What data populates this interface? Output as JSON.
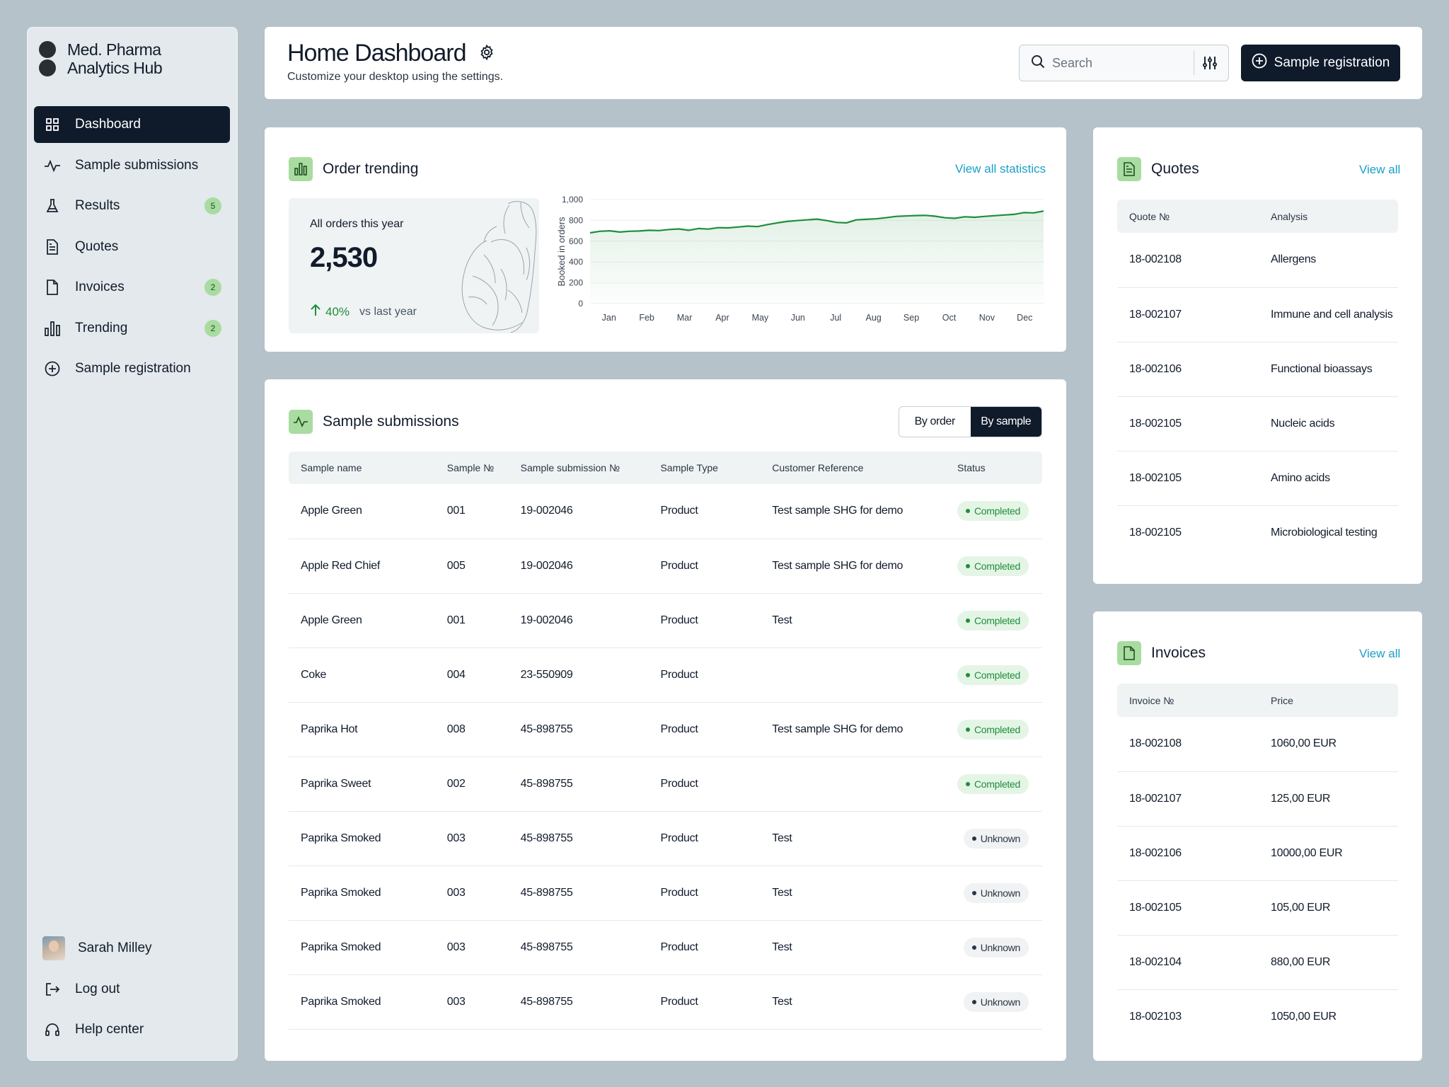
{
  "brand": {
    "line1": "Med. Pharma",
    "line2": "Analytics Hub"
  },
  "sidebar": {
    "items": [
      {
        "label": "Dashboard",
        "icon": "grid-icon",
        "badge": null,
        "active": true
      },
      {
        "label": "Sample submissions",
        "icon": "activity-icon",
        "badge": null
      },
      {
        "label": "Results",
        "icon": "flask-icon",
        "badge": "5"
      },
      {
        "label": "Quotes",
        "icon": "document-icon",
        "badge": null
      },
      {
        "label": "Invoices",
        "icon": "file-icon",
        "badge": "2"
      },
      {
        "label": "Trending",
        "icon": "bar-chart-icon",
        "badge": "2"
      },
      {
        "label": "Sample registration",
        "icon": "plus-circle-icon",
        "badge": null
      }
    ],
    "user_name": "Sarah Milley",
    "logout": "Log out",
    "help": "Help center"
  },
  "header": {
    "title": "Home Dashboard",
    "subtitle": "Customize your desktop using the settings.",
    "search_placeholder": "Search",
    "primary_button": "Sample registration"
  },
  "order_trending": {
    "title": "Order trending",
    "link": "View all statistics",
    "stat_label": "All orders this year",
    "stat_value": "2,530",
    "change": "40%",
    "change_suffix": "vs last year"
  },
  "chart_data": {
    "type": "area",
    "ylabel": "Booked in orders",
    "ylim": [
      0,
      1000
    ],
    "yticks": [
      "0",
      "200",
      "400",
      "600",
      "800",
      "1,000"
    ],
    "categories": [
      "Jan",
      "Feb",
      "Mar",
      "Apr",
      "May",
      "Jun",
      "Jul",
      "Aug",
      "Sep",
      "Oct",
      "Nov",
      "Dec"
    ],
    "x": [
      0,
      0.25,
      0.5,
      0.75,
      1,
      1.25,
      1.5,
      1.75,
      2,
      2.25,
      2.5,
      2.75,
      3,
      3.25,
      3.5,
      3.75,
      4,
      4.25,
      4.5,
      4.75,
      5,
      5.25,
      5.5,
      5.75,
      6,
      6.25,
      6.5,
      6.75,
      7,
      7.25,
      7.5,
      7.75,
      8,
      8.25,
      8.5,
      8.75,
      9,
      9.25,
      9.5,
      9.75,
      10,
      10.25,
      10.5,
      10.75,
      11,
      11.25,
      11.5
    ],
    "values": [
      680,
      695,
      700,
      688,
      695,
      698,
      705,
      702,
      712,
      718,
      705,
      722,
      716,
      730,
      728,
      736,
      745,
      740,
      760,
      776,
      790,
      798,
      805,
      812,
      798,
      780,
      776,
      805,
      810,
      815,
      825,
      838,
      842,
      846,
      848,
      840,
      825,
      820,
      835,
      830,
      838,
      845,
      852,
      858,
      875,
      872,
      890
    ]
  },
  "submissions": {
    "title": "Sample submissions",
    "segments": [
      "By order",
      "By sample"
    ],
    "columns": [
      "Sample name",
      "Sample №",
      "Sample submission №",
      "Sample Type",
      "Customer Reference",
      "Status"
    ],
    "rows": [
      [
        "Apple Green",
        "001",
        "19-002046",
        "Product",
        "Test sample SHG for demo",
        "Completed"
      ],
      [
        "Apple Red Chief",
        "005",
        "19-002046",
        "Product",
        "Test sample SHG for demo",
        "Completed"
      ],
      [
        "Apple Green",
        "001",
        "19-002046",
        "Product",
        "Test",
        "Completed"
      ],
      [
        "Coke",
        "004",
        "23-550909",
        "Product",
        "",
        "Completed"
      ],
      [
        "Paprika Hot",
        "008",
        "45-898755",
        "Product",
        "Test sample SHG for demo",
        "Completed"
      ],
      [
        "Paprika Sweet",
        "002",
        "45-898755",
        "Product",
        "",
        "Completed"
      ],
      [
        "Paprika Smoked",
        "003",
        "45-898755",
        "Product",
        "Test",
        "Unknown"
      ],
      [
        "Paprika Smoked",
        "003",
        "45-898755",
        "Product",
        "Test",
        "Unknown"
      ],
      [
        "Paprika Smoked",
        "003",
        "45-898755",
        "Product",
        "Test",
        "Unknown"
      ],
      [
        "Paprika Smoked",
        "003",
        "45-898755",
        "Product",
        "Test",
        "Unknown"
      ]
    ]
  },
  "quotes": {
    "title": "Quotes",
    "link": "View all",
    "columns": [
      "Quote №",
      "Analysis"
    ],
    "rows": [
      [
        "18-002108",
        "Allergens"
      ],
      [
        "18-002107",
        "Immune and cell analysis"
      ],
      [
        "18-002106",
        "Functional bioassays"
      ],
      [
        "18-002105",
        "Nucleic acids"
      ],
      [
        "18-002105",
        "Amino acids"
      ],
      [
        "18-002105",
        "Microbiological testing"
      ]
    ]
  },
  "invoices": {
    "title": "Invoices",
    "link": "View all",
    "columns": [
      "Invoice №",
      "Price"
    ],
    "rows": [
      [
        "18-002108",
        "1060,00 EUR"
      ],
      [
        "18-002107",
        "125,00 EUR"
      ],
      [
        "18-002106",
        "10000,00 EUR"
      ],
      [
        "18-002105",
        "105,00 EUR"
      ],
      [
        "18-002104",
        "880,00 EUR"
      ],
      [
        "18-002103",
        "1050,00 EUR"
      ]
    ]
  },
  "colors": {
    "accent": "#1f8e3a",
    "dark": "#0f1a2b",
    "link": "#1aa0c8",
    "badge": "#a9dca0"
  }
}
